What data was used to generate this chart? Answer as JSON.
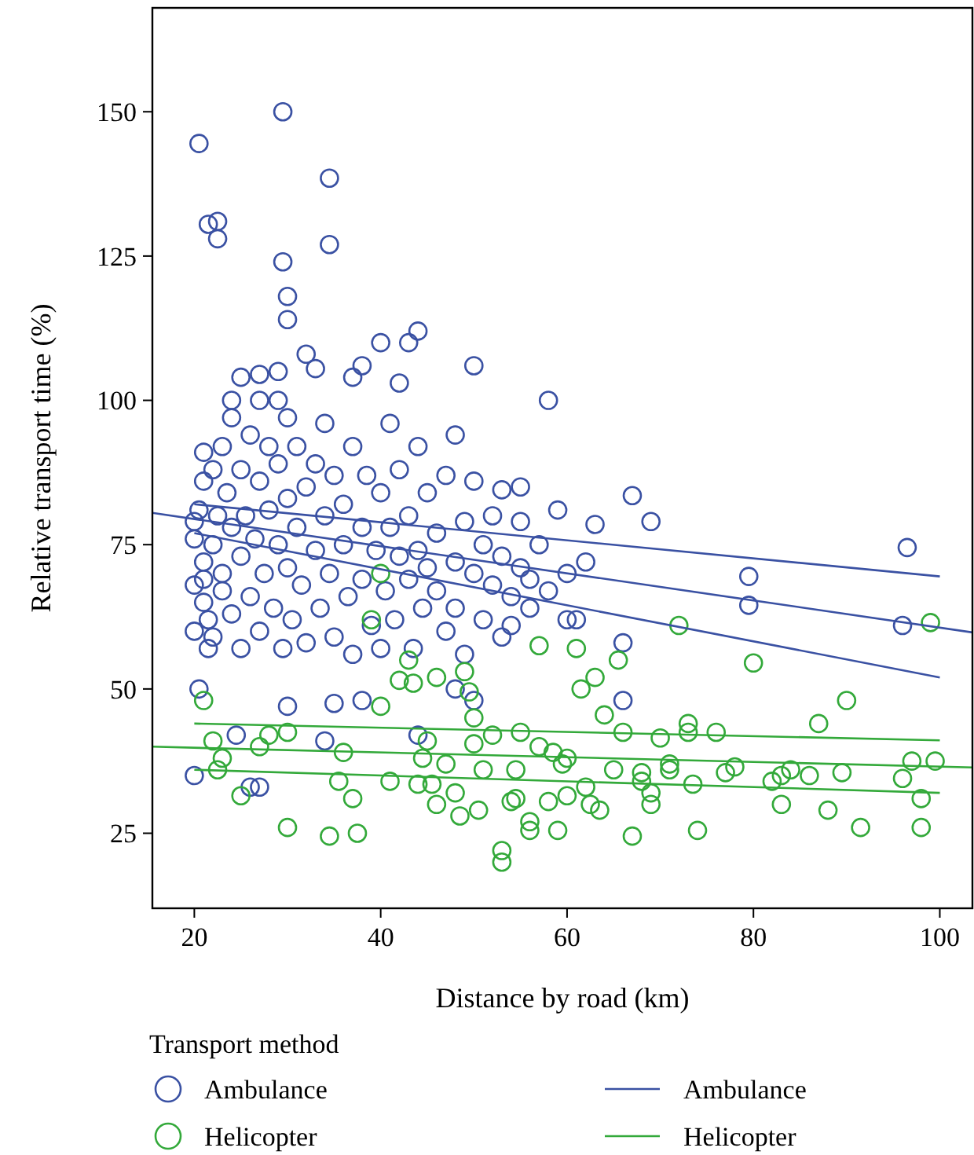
{
  "chart_data": {
    "type": "scatter",
    "xlabel": "Distance by road (km)",
    "ylabel": "Relative transport time (%)",
    "legend_title": "Transport method",
    "legend": "bottom",
    "grid": false,
    "xlim": [
      15.5,
      103.5
    ],
    "ylim": [
      12,
      168
    ],
    "xticks": [
      20,
      40,
      60,
      80,
      100
    ],
    "yticks": [
      25,
      50,
      75,
      100,
      125,
      150
    ],
    "series": [
      {
        "name": "Ambulance",
        "marker": "circle",
        "color": "#3a51a3",
        "x": [
          20.5,
          21.5,
          22.5,
          22.5,
          29.5,
          29.5,
          30,
          34.5,
          34.5,
          30,
          32,
          33,
          29,
          27,
          25,
          24,
          27,
          29,
          37,
          40,
          43,
          44,
          48,
          50,
          38,
          42,
          53,
          55,
          58,
          59,
          63,
          67,
          69,
          79.5,
          79.5,
          96.5,
          96,
          60,
          20,
          20.5,
          21.5,
          26,
          27,
          24.5,
          30,
          34,
          35,
          38,
          44,
          48,
          54,
          66,
          50,
          61,
          56,
          66,
          20,
          20,
          20,
          20,
          20.5,
          21,
          21,
          21,
          21,
          21,
          21.5,
          22,
          22,
          22,
          22.5,
          23,
          23,
          23,
          23.5,
          24,
          24,
          24,
          25,
          25,
          25,
          25.5,
          26,
          26,
          26.5,
          27,
          27,
          27.5,
          28,
          28,
          28.5,
          29,
          29,
          29.5,
          30,
          30,
          30,
          30.5,
          31,
          31,
          31.5,
          32,
          32,
          33,
          33,
          33.5,
          34,
          34,
          34.5,
          35,
          35,
          36,
          36,
          36.5,
          37,
          37,
          38,
          38,
          38.5,
          39,
          39.5,
          40,
          40,
          40.5,
          41,
          41,
          41.5,
          42,
          42,
          43,
          43,
          43.5,
          44,
          44,
          44.5,
          45,
          45,
          46,
          46,
          47,
          47,
          48,
          48,
          49,
          49,
          50,
          50,
          51,
          51,
          52,
          52,
          53,
          53,
          54,
          55,
          55,
          56,
          57,
          58,
          60,
          62
        ],
        "values": [
          144.5,
          130.5,
          131,
          128,
          150,
          124,
          118,
          138.5,
          127,
          114,
          108,
          105.5,
          105,
          104.5,
          104,
          100,
          100,
          100,
          104,
          110,
          110,
          112,
          94,
          106,
          106,
          103,
          84.5,
          85,
          100,
          81,
          78.5,
          83.5,
          79,
          69.5,
          64.5,
          74.5,
          61,
          62,
          35,
          50,
          57,
          33,
          33,
          42,
          47,
          41,
          47.5,
          48,
          42,
          50,
          61,
          58,
          48,
          62,
          64,
          48,
          60,
          68,
          76,
          79,
          81,
          69,
          72,
          86,
          91,
          65,
          62,
          75,
          88,
          59,
          80,
          67,
          92,
          70,
          84,
          63,
          78,
          97,
          73,
          88,
          57,
          80,
          66,
          94,
          76,
          86,
          60,
          70,
          81,
          92,
          64,
          75,
          89,
          57,
          71,
          83,
          97,
          62,
          78,
          92,
          68,
          85,
          58,
          74,
          89,
          64,
          80,
          96,
          70,
          59,
          87,
          75,
          82,
          66,
          92,
          56,
          78,
          69,
          87,
          61,
          74,
          84,
          57,
          67,
          78,
          96,
          62,
          73,
          88,
          69,
          80,
          57,
          74,
          92,
          64,
          71,
          84,
          67,
          77,
          60,
          87,
          72,
          64,
          79,
          56,
          70,
          86,
          62,
          75,
          68,
          80,
          73,
          59,
          66,
          79,
          71,
          69,
          75,
          67,
          70,
          72
        ]
      },
      {
        "name": "Helicopter",
        "marker": "circle",
        "color": "#33a93a",
        "x": [
          21,
          22,
          22.5,
          23,
          25,
          27,
          28,
          30,
          30,
          34.5,
          35.5,
          36,
          37,
          37.5,
          39,
          40,
          40,
          41,
          42,
          43,
          43.5,
          44,
          44.5,
          45,
          45.5,
          46,
          46,
          47,
          48,
          48.5,
          49.5,
          49,
          50,
          50,
          50.5,
          51,
          52,
          53,
          53,
          54,
          54.5,
          54.5,
          55,
          56,
          56,
          57,
          57,
          58,
          58.5,
          59,
          59.5,
          60,
          60,
          61,
          61.5,
          62,
          62.5,
          63,
          63.5,
          64,
          65,
          65.5,
          66,
          67,
          68,
          68,
          69,
          69,
          70,
          71,
          71,
          72,
          73,
          73,
          73.5,
          74,
          76,
          77,
          78,
          80,
          82,
          83,
          83,
          84,
          86,
          87,
          88,
          89.5,
          90,
          91.5,
          96,
          97,
          98,
          98,
          99,
          99.5
        ],
        "values": [
          48,
          41,
          36,
          38,
          31.5,
          40,
          42,
          42.5,
          26,
          24.5,
          34,
          39,
          31,
          25,
          62,
          70,
          47,
          34,
          51.5,
          55,
          51,
          33.5,
          38,
          41,
          33.5,
          52,
          30,
          37,
          32,
          28,
          49.5,
          53,
          45,
          40.5,
          29,
          36,
          42,
          22,
          20,
          30.5,
          31,
          36,
          42.5,
          27,
          25.5,
          40,
          57.5,
          30.5,
          39,
          25.5,
          37,
          38,
          31.5,
          57,
          50,
          33,
          30,
          52,
          29,
          45.5,
          36,
          55,
          42.5,
          24.5,
          35.5,
          34,
          30,
          32,
          41.5,
          37,
          36,
          61,
          42.5,
          44,
          33.5,
          25.5,
          42.5,
          35.5,
          36.5,
          54.5,
          34,
          35,
          30,
          36,
          35,
          44,
          29,
          35.5,
          48,
          26,
          34.5,
          37.5,
          31,
          26,
          61.5,
          37.5
        ]
      },
      {
        "name": "Ambulance",
        "type": "line",
        "color": "#3a51a3",
        "x": [
          15.5,
          103.5
        ],
        "values": [
          80.5,
          59.8
        ]
      },
      {
        "type": "line",
        "color": "#3a51a3",
        "x": [
          20,
          100
        ],
        "values": [
          82,
          69.5
        ]
      },
      {
        "type": "line",
        "color": "#3a51a3",
        "x": [
          20,
          100
        ],
        "values": [
          77,
          52
        ]
      },
      {
        "name": "Helicopter",
        "type": "line",
        "color": "#33a93a",
        "x": [
          15.5,
          103.5
        ],
        "values": [
          40,
          36.4
        ]
      },
      {
        "type": "line",
        "color": "#33a93a",
        "x": [
          20,
          100
        ],
        "values": [
          44,
          41.1
        ]
      },
      {
        "type": "line",
        "color": "#33a93a",
        "x": [
          20,
          100
        ],
        "values": [
          36,
          32
        ]
      }
    ]
  }
}
